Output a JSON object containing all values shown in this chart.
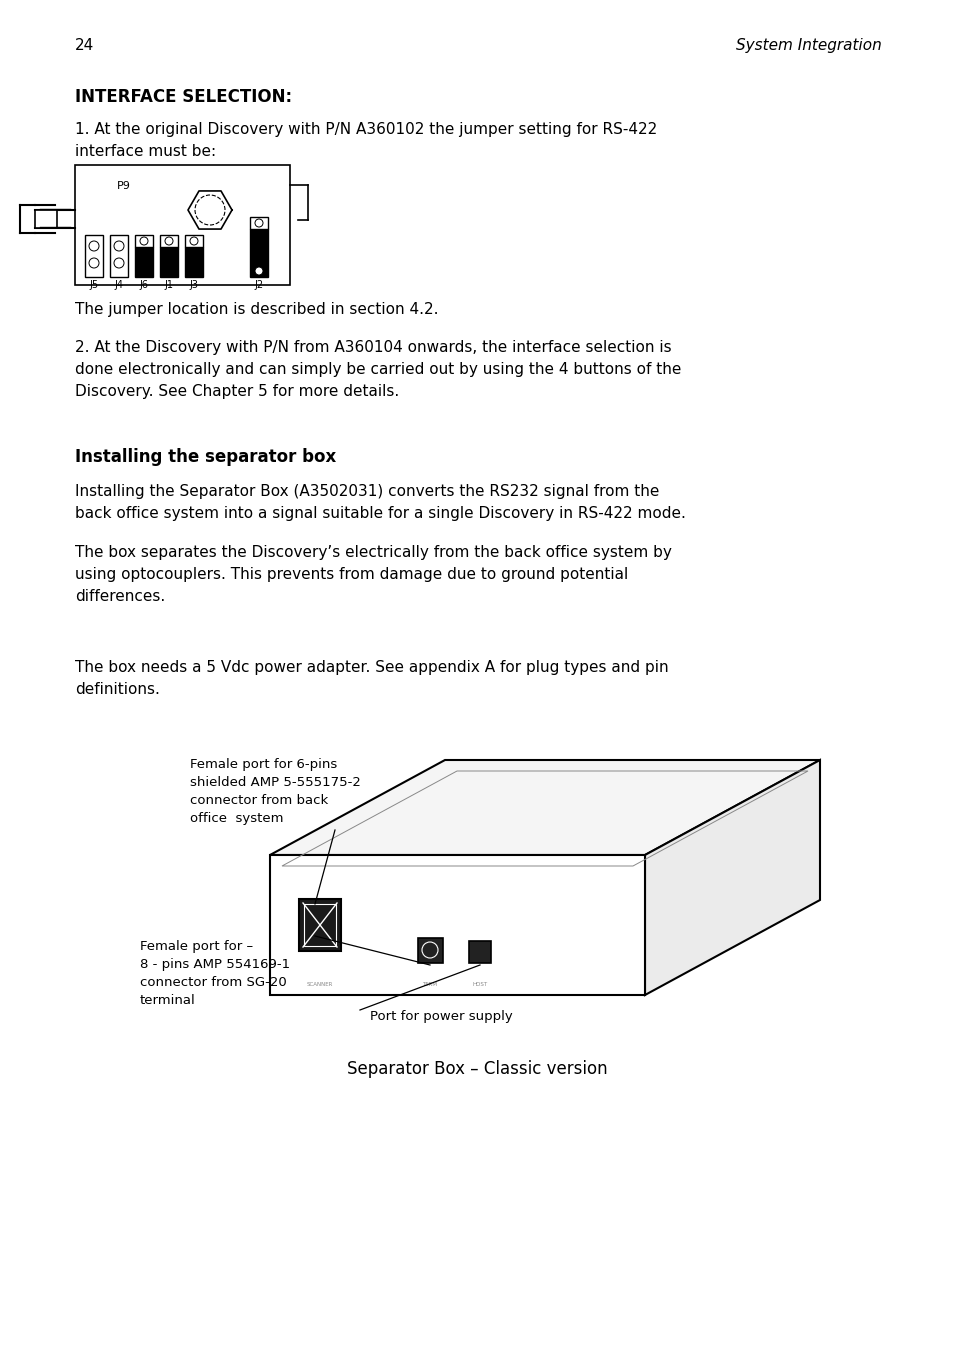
{
  "page_number": "24",
  "header_right": "System Integration",
  "title": "INTERFACE SELECTION:",
  "para1_l1": "1. At the original Discovery with P/N A360102 the jumper setting for RS-422",
  "para1_l2": "interface must be:",
  "para2": "The jumper location is described in section 4.2.",
  "para3_l1": "2. At the Discovery with P/N from A360104 onwards, the interface selection is",
  "para3_l2": "done electronically and can simply be carried out by using the 4 buttons of the",
  "para3_l3": "Discovery. See Chapter 5 for more details.",
  "section_title": "Installing the separator box",
  "para4_l1": "Installing the Separator Box (A3502031) converts the RS232 signal from the",
  "para4_l2": "back office system into a signal suitable for a single Discovery in RS-422 mode.",
  "para5_l1": "The box separates the Discovery’s electrically from the back office system by",
  "para5_l2": "using optocouplers. This prevents from damage due to ground potential",
  "para5_l3": "differences.",
  "para6_l1": "The box needs a 5 Vdc power adapter. See appendix A for plug types and pin",
  "para6_l2": "definitions.",
  "label1_l1": "Female port for 6-pins",
  "label1_l2": "shielded AMP 5-555175-2",
  "label1_l3": "connector from back",
  "label1_l4": "office  system",
  "label2_l1": "Female port for –",
  "label2_l2": "8 - pins AMP 554169-1",
  "label2_l3": "connector from SG-20",
  "label2_l4": "terminal",
  "label3": "Port for power supply",
  "caption": "Separator Box – Classic version"
}
